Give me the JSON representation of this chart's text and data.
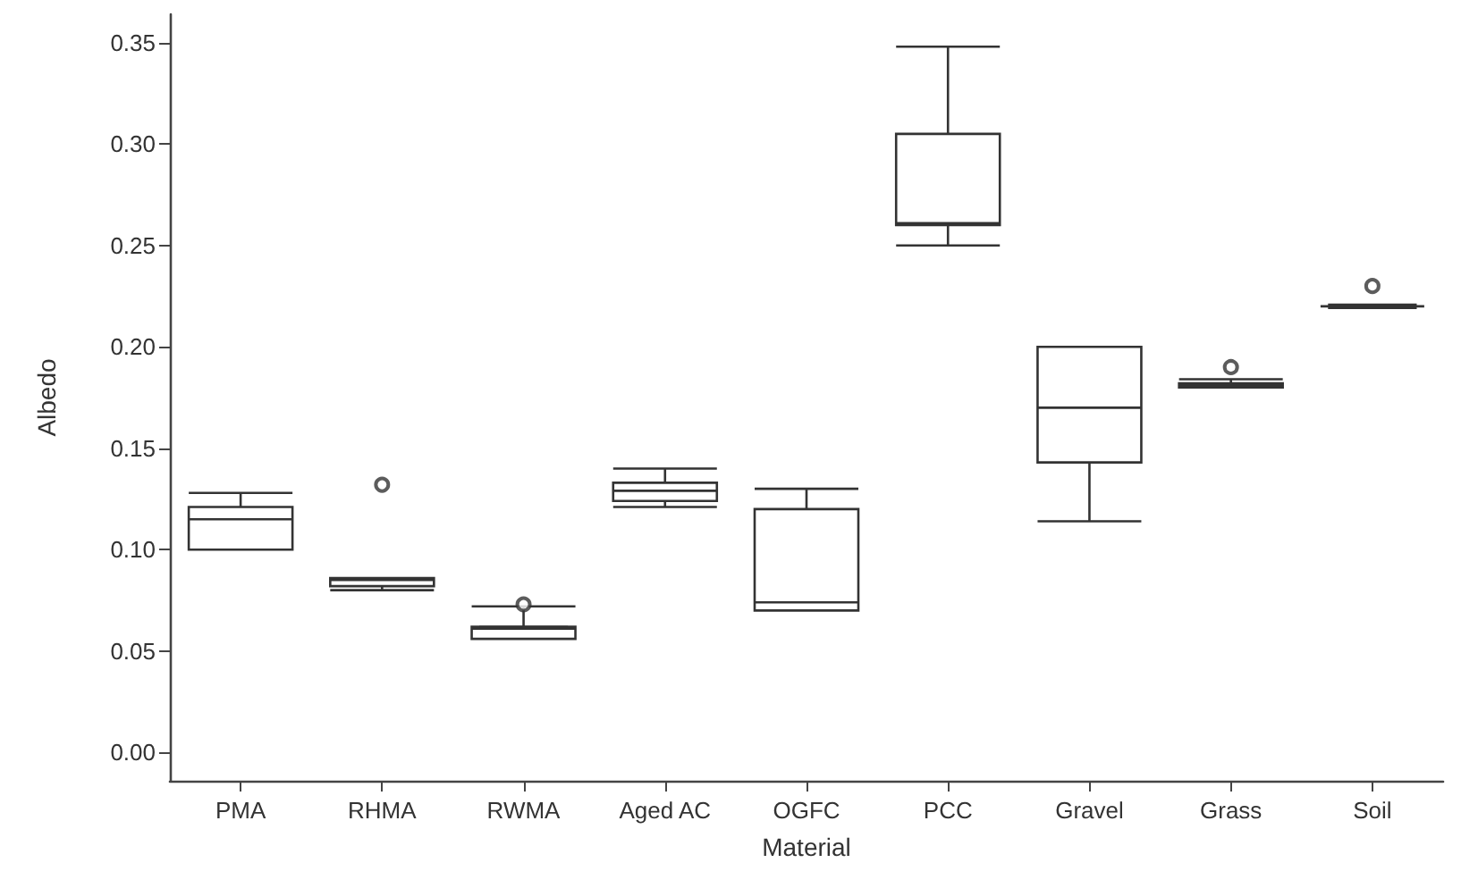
{
  "chart_data": {
    "type": "box",
    "xlabel": "Material",
    "ylabel": "Albedo",
    "categories": [
      "PMA",
      "RHMA",
      "RWMA",
      "Aged AC",
      "OGFC",
      "PCC",
      "Gravel",
      "Grass",
      "Soil"
    ],
    "series": [
      {
        "color": "#333333",
        "boxes": [
          {
            "low": 0.1,
            "q1": 0.1,
            "median": 0.115,
            "q3": 0.121,
            "high": 0.128
          },
          {
            "low": 0.08,
            "q1": 0.082,
            "median": 0.085,
            "q3": 0.086,
            "high": 0.086,
            "outliers": [
              0.132
            ]
          },
          {
            "low": 0.056,
            "q1": 0.056,
            "median": 0.061,
            "q3": 0.062,
            "high": 0.072,
            "outliers": [
              0.073
            ]
          },
          {
            "low": 0.121,
            "q1": 0.124,
            "median": 0.129,
            "q3": 0.133,
            "high": 0.14
          },
          {
            "low": 0.07,
            "q1": 0.07,
            "median": 0.074,
            "q3": 0.12,
            "high": 0.13
          },
          {
            "low": 0.25,
            "q1": 0.26,
            "median": 0.261,
            "q3": 0.305,
            "high": 0.348
          },
          {
            "low": 0.114,
            "q1": 0.143,
            "median": 0.17,
            "q3": 0.2,
            "high": 0.2
          },
          {
            "low": 0.18,
            "q1": 0.18,
            "median": 0.181,
            "q3": 0.182,
            "high": 0.184,
            "outliers": [
              0.19
            ]
          },
          {
            "low": 0.22,
            "q1": 0.22,
            "median": 0.22,
            "q3": 0.22,
            "high": 0.22,
            "outliers": [
              0.23
            ]
          }
        ]
      }
    ],
    "ylim": [
      -0.014,
      0.364
    ],
    "yticks": [
      {
        "value": 0,
        "label": "0.00"
      },
      {
        "value": 0.05,
        "label": "0.05"
      },
      {
        "value": 0.1,
        "label": "0.10"
      },
      {
        "value": 0.15,
        "label": "0.15"
      },
      {
        "value": 0.2,
        "label": "0.20"
      },
      {
        "value": 0.25,
        "label": "0.25"
      },
      {
        "value": 0.3,
        "label": "0.30"
      },
      {
        "value": 0.35,
        "label": "0.35"
      }
    ],
    "grid": false
  }
}
